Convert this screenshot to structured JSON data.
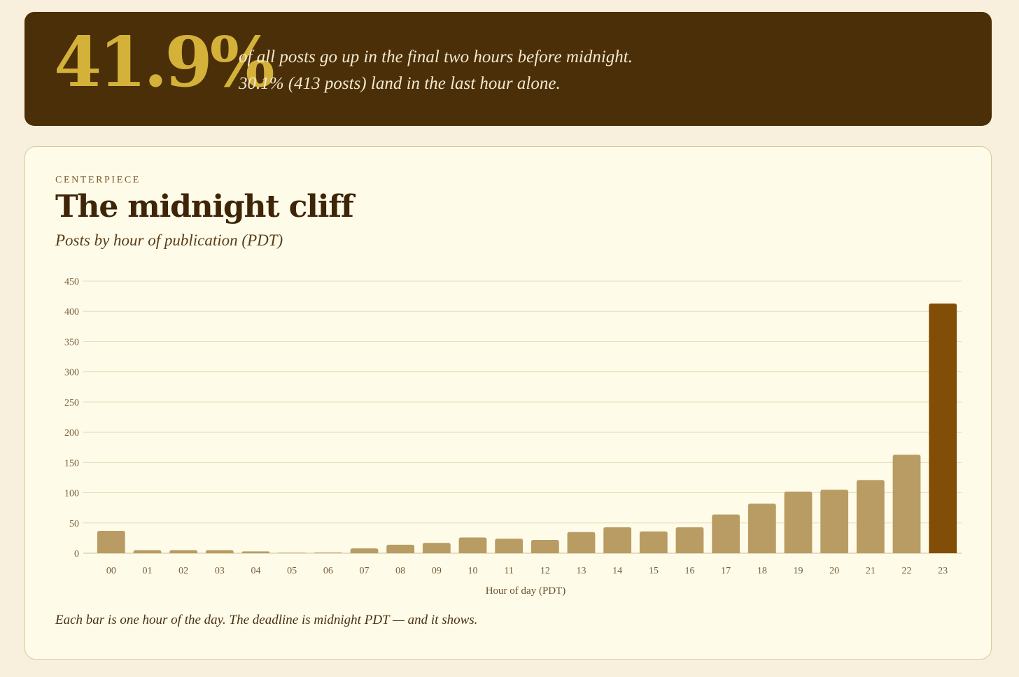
{
  "hero": {
    "stat": "41.9%",
    "line1": "of all posts go up in the final two hours before midnight.",
    "line2": "30.1% (413 posts) land in the last hour alone.",
    "background_color": "#4a2f08",
    "stat_color": "#d4b23a"
  },
  "card": {
    "eyebrow": "CENTERPIECE",
    "title": "The midnight cliff",
    "subtitle": "Posts by hour of publication (PDT)",
    "caption": "Each bar is one hour of the day. The deadline is midnight PDT — and it shows."
  },
  "chart_data": {
    "type": "bar",
    "categories": [
      "00",
      "01",
      "02",
      "03",
      "04",
      "05",
      "06",
      "07",
      "08",
      "09",
      "10",
      "11",
      "12",
      "13",
      "14",
      "15",
      "16",
      "17",
      "18",
      "19",
      "20",
      "21",
      "22",
      "23"
    ],
    "values": [
      37,
      5,
      5,
      5,
      3,
      0,
      1,
      8,
      14,
      17,
      26,
      24,
      22,
      35,
      43,
      36,
      43,
      64,
      82,
      102,
      105,
      121,
      163,
      413
    ],
    "title": "",
    "xlabel": "Hour of day (PDT)",
    "ylabel": "",
    "ylim": [
      0,
      450
    ],
    "yticks": [
      0,
      50,
      100,
      150,
      200,
      250,
      300,
      350,
      400,
      450
    ],
    "grid": true,
    "bar_color": "#b89c63",
    "highlight_color": "#824d07",
    "highlight_category": "23",
    "legend": "none"
  }
}
